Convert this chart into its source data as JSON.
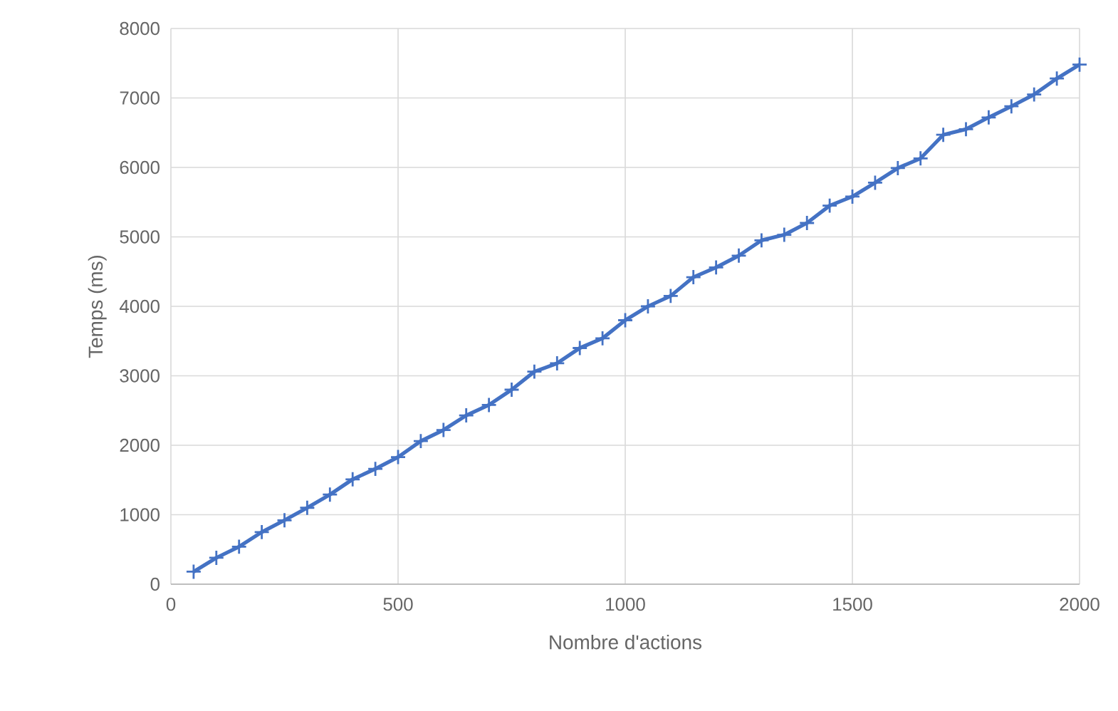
{
  "chart_data": {
    "type": "line",
    "xlabel": "Nombre d'actions",
    "ylabel": "Temps (ms)",
    "x": [
      50,
      100,
      150,
      200,
      250,
      300,
      350,
      400,
      450,
      500,
      550,
      600,
      650,
      700,
      750,
      800,
      850,
      900,
      950,
      1000,
      1050,
      1100,
      1150,
      1200,
      1250,
      1300,
      1350,
      1400,
      1450,
      1500,
      1550,
      1600,
      1650,
      1700,
      1750,
      1800,
      1850,
      1900,
      1950,
      2000
    ],
    "series": [
      {
        "color": "#4472c4",
        "values": [
          180,
          380,
          540,
          750,
          920,
          1100,
          1290,
          1510,
          1660,
          1830,
          2060,
          2220,
          2430,
          2580,
          2800,
          3060,
          3180,
          3400,
          3540,
          3800,
          4000,
          4150,
          4420,
          4560,
          4730,
          4950,
          5030,
          5200,
          5450,
          5580,
          5780,
          5990,
          6130,
          6470,
          6550,
          6720,
          6880,
          7050,
          7280,
          7480
        ]
      }
    ],
    "xlim": [
      0,
      2000
    ],
    "ylim": [
      0,
      8000
    ],
    "xticks": [
      0,
      500,
      1000,
      1500,
      2000
    ],
    "yticks": [
      0,
      1000,
      2000,
      3000,
      4000,
      5000,
      6000,
      7000,
      8000
    ],
    "grid": true,
    "marker": "cross",
    "line_style": "solid"
  }
}
